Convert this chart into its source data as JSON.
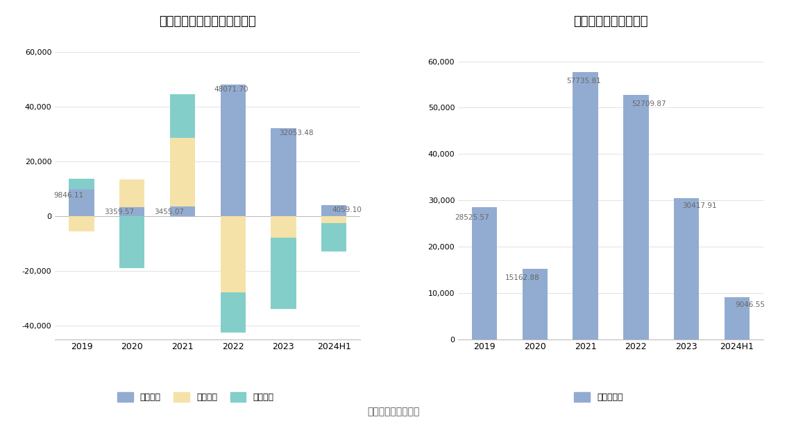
{
  "left_title": "皇马科技现金流净额（万元）",
  "right_title": "自由现金流量（万元）",
  "categories": [
    "2019",
    "2020",
    "2021",
    "2022",
    "2023",
    "2024H1"
  ],
  "operating": [
    9846.11,
    3359.57,
    3455.07,
    48071.7,
    32053.48,
    4059.1
  ],
  "financing": [
    -5500,
    10000,
    25000,
    -28000,
    -8000,
    -2500
  ],
  "investing": [
    3800,
    -19000,
    16000,
    -14500,
    -26000,
    -10500
  ],
  "free_cashflow": [
    28525.57,
    15162.88,
    57735.81,
    52709.87,
    30417.91,
    9046.55
  ],
  "op_labels": [
    "9846.11",
    "3359.57",
    "3455.07",
    "48071.70",
    "32053.48",
    "4059.10"
  ],
  "fcf_labels": [
    "28525.57",
    "15162.88",
    "57735.81",
    "52709.87",
    "30417.91",
    "9046.55"
  ],
  "operating_color": "#92ACD1",
  "financing_color": "#F5E2A8",
  "investing_color": "#83CEC9",
  "free_cf_color": "#92ACD1",
  "background_color": "#FFFFFF",
  "grid_color": "#DDDDDD",
  "ylim_left": [
    -45000,
    65000
  ],
  "ylim_right": [
    0,
    65000
  ],
  "yticks_left": [
    -40000,
    -20000,
    0,
    20000,
    40000,
    60000
  ],
  "yticks_right": [
    0,
    10000,
    20000,
    30000,
    40000,
    50000,
    60000
  ],
  "footer_text": "数据来源：恒生聚源",
  "legend_left": [
    "经营活动",
    "筹资活动",
    "投资活动"
  ],
  "legend_right": [
    "自由现金流"
  ],
  "bar_width": 0.5,
  "label_fontsize": 7.5,
  "title_fontsize": 13
}
